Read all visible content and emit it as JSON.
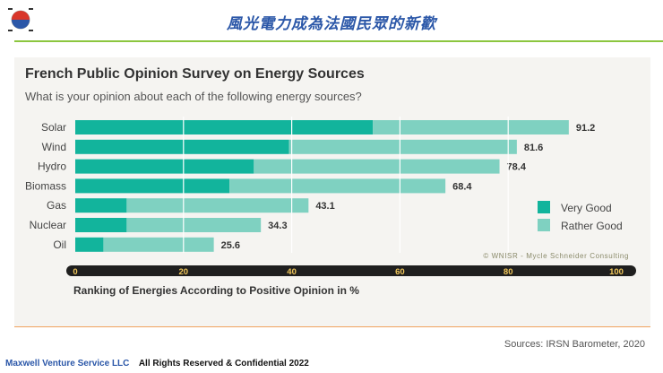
{
  "slide": {
    "title": "風光電力成為法國民眾的新歡",
    "source": "Sources: IRSN Barometer, 2020",
    "footer_company": "Maxwell Venture Service LLC",
    "footer_rights": "All Rights Reserved & Confidential 2022"
  },
  "chart_data": {
    "type": "bar",
    "orientation": "horizontal",
    "stacked": true,
    "title": "French Public Opinion Survey on Energy Sources",
    "subtitle": "What is your opinion about each of the following energy sources?",
    "xlabel": "Ranking of Energies According to Positive Opinion in %",
    "ylabel": "",
    "xlim": [
      0,
      100
    ],
    "xticks": [
      0,
      20,
      40,
      60,
      80,
      100
    ],
    "categories": [
      "Solar",
      "Wind",
      "Hydro",
      "Biomass",
      "Gas",
      "Nuclear",
      "Oil"
    ],
    "totals": [
      91.2,
      81.6,
      78.4,
      68.4,
      43.1,
      34.3,
      25.6
    ],
    "series": [
      {
        "name": "Very Good",
        "color": "#12b49c",
        "values": [
          55,
          39.5,
          33,
          28.5,
          9.5,
          9.5,
          5.2
        ]
      },
      {
        "name": "Rather Good",
        "color": "#7fd1c1",
        "values": [
          36.2,
          42.1,
          45.4,
          39.9,
          33.6,
          24.8,
          20.4
        ]
      }
    ],
    "credit": "© WNISR - Mycle Schneider Consulting",
    "legend_position": "right",
    "grid": true
  }
}
